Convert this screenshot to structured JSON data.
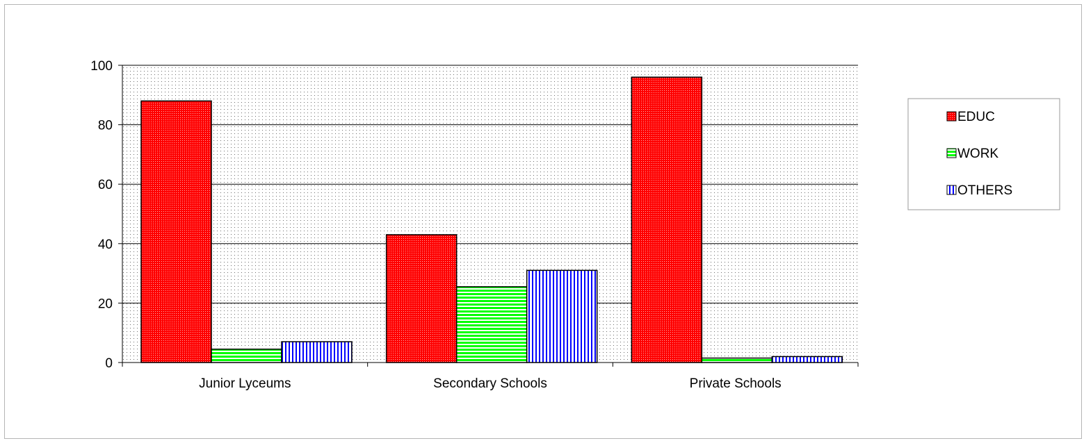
{
  "chart_data": {
    "type": "bar",
    "categories": [
      "Junior Lyceums",
      "Secondary Schools",
      "Private Schools"
    ],
    "series": [
      {
        "name": "EDUC",
        "values": [
          88,
          43,
          96
        ],
        "color": "#ff0000",
        "pattern": "dots"
      },
      {
        "name": "WORK",
        "values": [
          4.5,
          25.5,
          1.5
        ],
        "color": "#00ff00",
        "pattern": "horizontal"
      },
      {
        "name": "OTHERS",
        "values": [
          7,
          31,
          2
        ],
        "color": "#0000ff",
        "pattern": "vertical"
      }
    ],
    "yticks": [
      "0",
      "20",
      "40",
      "60",
      "80",
      "100"
    ],
    "ylim": [
      0,
      100
    ],
    "grid": true,
    "legend_position": "right",
    "plot_background": "dotted-gray"
  }
}
